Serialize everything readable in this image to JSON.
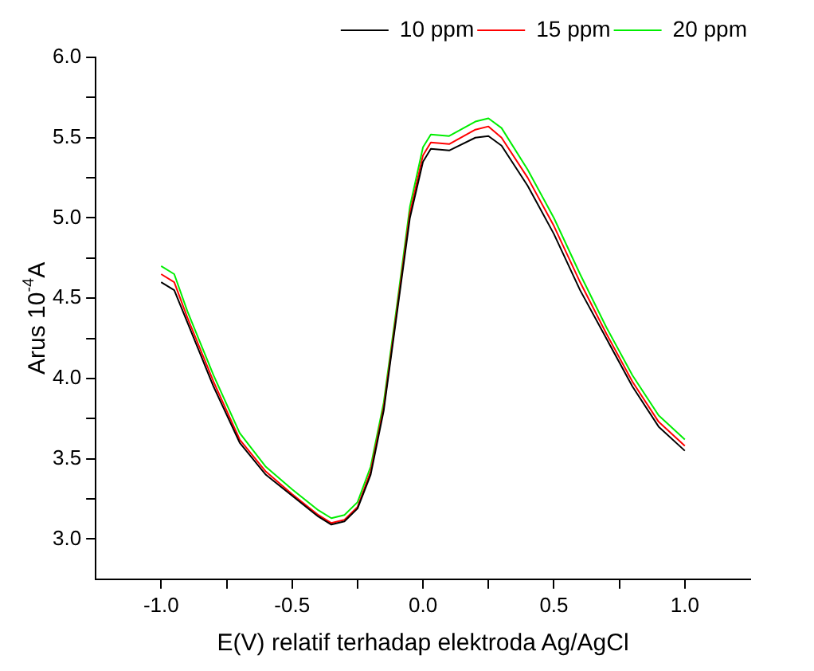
{
  "chart_data": {
    "type": "line",
    "xlabel": "E(V) relatif terhadap elektroda Ag/AgCl",
    "ylabel": "Arus 10$^{-4}$A",
    "x": [
      -1.0,
      -0.95,
      -0.9,
      -0.8,
      -0.7,
      -0.6,
      -0.5,
      -0.4,
      -0.35,
      -0.3,
      -0.25,
      -0.2,
      -0.15,
      -0.1,
      -0.05,
      0.0,
      0.03,
      0.1,
      0.2,
      0.25,
      0.3,
      0.4,
      0.5,
      0.6,
      0.7,
      0.8,
      0.9,
      1.0
    ],
    "series": [
      {
        "name": "10 ppm",
        "color": "#000000",
        "values": [
          4.6,
          4.55,
          4.35,
          3.95,
          3.6,
          3.4,
          3.27,
          3.14,
          3.09,
          3.11,
          3.19,
          3.4,
          3.8,
          4.4,
          5.0,
          5.35,
          5.43,
          5.42,
          5.5,
          5.51,
          5.45,
          5.2,
          4.9,
          4.55,
          4.25,
          3.95,
          3.7,
          3.55
        ]
      },
      {
        "name": "15 ppm",
        "color": "#ff0000",
        "values": [
          4.65,
          4.6,
          4.38,
          3.98,
          3.62,
          3.42,
          3.28,
          3.15,
          3.1,
          3.12,
          3.2,
          3.42,
          3.82,
          4.42,
          5.03,
          5.39,
          5.47,
          5.46,
          5.55,
          5.57,
          5.5,
          5.25,
          4.95,
          4.6,
          4.28,
          3.98,
          3.73,
          3.58
        ]
      },
      {
        "name": "20 ppm",
        "color": "#00ee00",
        "values": [
          4.7,
          4.65,
          4.42,
          4.02,
          3.66,
          3.45,
          3.31,
          3.18,
          3.13,
          3.15,
          3.23,
          3.45,
          3.85,
          4.45,
          5.07,
          5.44,
          5.52,
          5.51,
          5.6,
          5.62,
          5.56,
          5.3,
          5.0,
          4.65,
          4.32,
          4.02,
          3.77,
          3.62
        ]
      }
    ],
    "xlim": [
      -1.25,
      1.25
    ],
    "ylim": [
      2.75,
      6.0
    ],
    "xticks": [
      {
        "value": -1,
        "label": "-1.0"
      },
      {
        "value": -0.75,
        "label": null
      },
      {
        "value": -0.5,
        "label": "-0.5"
      },
      {
        "value": -0.25,
        "label": null
      },
      {
        "value": 0,
        "label": "0.0"
      },
      {
        "value": 0.25,
        "label": null
      },
      {
        "value": 0.5,
        "label": "0.5"
      },
      {
        "value": 0.75,
        "label": null
      },
      {
        "value": 1,
        "label": "1.0"
      }
    ],
    "yticks": [
      {
        "value": 3,
        "label": "3.0"
      },
      {
        "value": 3.25,
        "label": null
      },
      {
        "value": 3.5,
        "label": "3.5"
      },
      {
        "value": 3.75,
        "label": null
      },
      {
        "value": 4,
        "label": "4.0"
      },
      {
        "value": 4.25,
        "label": null
      },
      {
        "value": 4.5,
        "label": "4.5"
      },
      {
        "value": 4.75,
        "label": null
      },
      {
        "value": 5,
        "label": "5.0"
      },
      {
        "value": 5.25,
        "label": null
      },
      {
        "value": 5.5,
        "label": "5.5"
      },
      {
        "value": 5.75,
        "label": null
      },
      {
        "value": 6,
        "label": "6.0"
      }
    ],
    "grid": false,
    "legend": "top right",
    "marker": "none",
    "line_style": "solid"
  }
}
